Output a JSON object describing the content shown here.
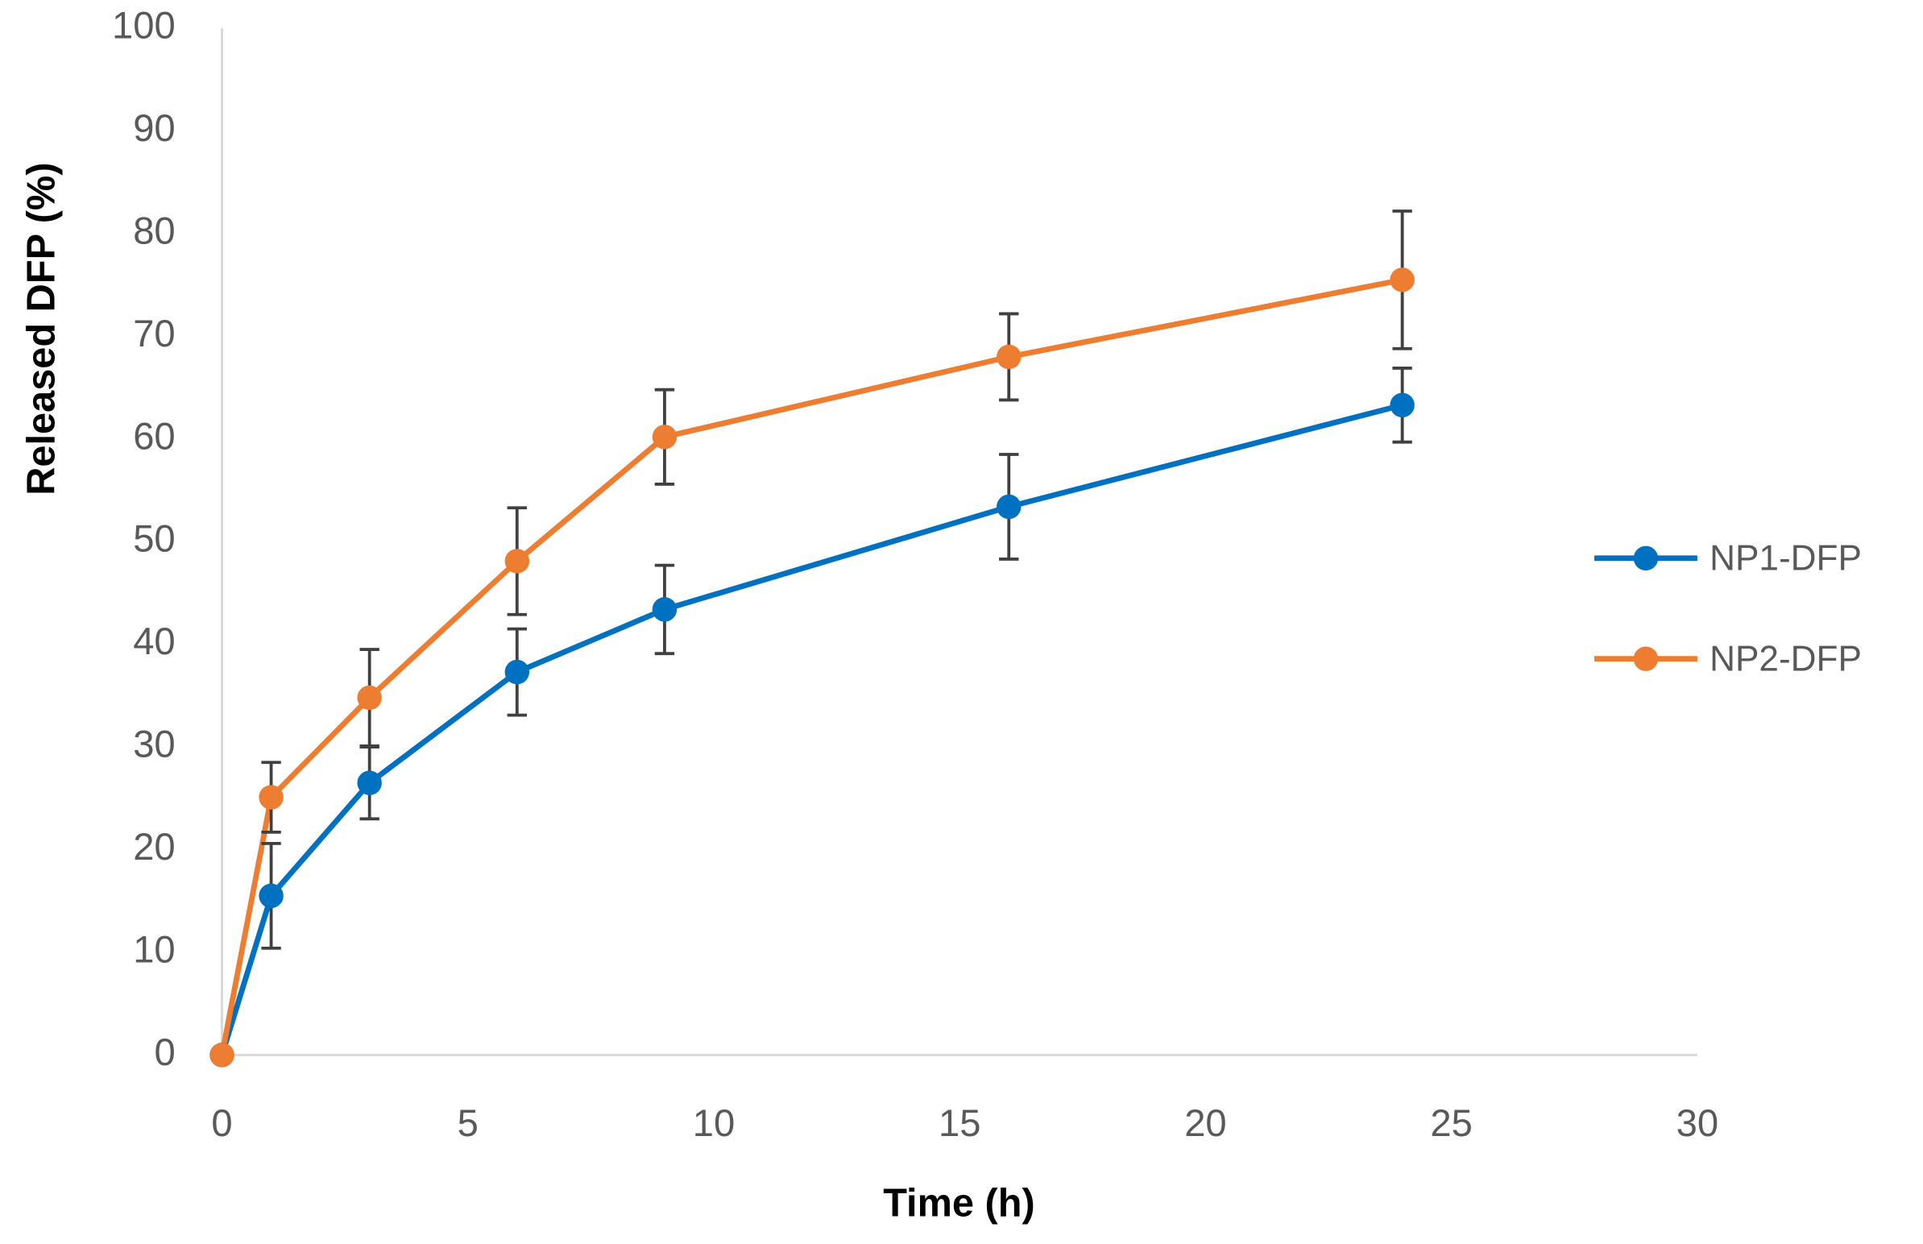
{
  "chart_data": {
    "type": "line",
    "xlabel": "Time (h)",
    "ylabel": "Released DFP (%)",
    "x": [
      0,
      1,
      3,
      6,
      9,
      16,
      24
    ],
    "series": [
      {
        "name": "NP1-DFP",
        "color": "#0070c0",
        "values": [
          0,
          15.5,
          26.5,
          37.3,
          43.4,
          53.4,
          63.3
        ],
        "errors": [
          0,
          5.1,
          3.5,
          4.2,
          4.3,
          5.1,
          3.6
        ]
      },
      {
        "name": "NP2-DFP",
        "color": "#ed7d31",
        "values": [
          0,
          25.1,
          34.8,
          48.1,
          60.2,
          68.0,
          75.5
        ],
        "errors": [
          0,
          3.4,
          4.7,
          5.2,
          4.6,
          4.2,
          6.7
        ]
      }
    ],
    "xlim": [
      0,
      30
    ],
    "xticks": [
      0,
      5,
      10,
      15,
      20,
      25,
      30
    ],
    "ylim": [
      0,
      100
    ],
    "yticks": [
      0,
      10,
      20,
      30,
      40,
      50,
      60,
      70,
      80,
      90,
      100
    ],
    "grid": false,
    "legend": "right"
  }
}
